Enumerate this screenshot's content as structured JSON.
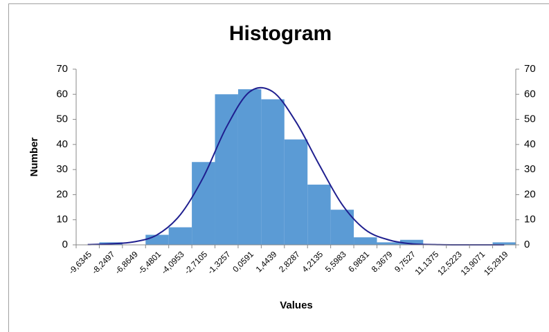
{
  "chart_data": {
    "type": "bar",
    "title": "Histogram",
    "x_label": "Values",
    "y_label": "Number",
    "categories": [
      "-9,6345",
      "-8,2497",
      "-6,8649",
      "-5,4801",
      "-4,0953",
      "-2,7105",
      "-1,3257",
      "0,0591",
      "1,4439",
      "2,8287",
      "4,2135",
      "5,5983",
      "6,9831",
      "8,3679",
      "9,7527",
      "11,1375",
      "12,5223",
      "13,9071",
      "15,2919"
    ],
    "series": [
      {
        "type": "bar",
        "color": "#5b9bd5",
        "values": [
          0,
          1,
          0,
          4,
          7,
          33,
          60,
          62,
          58,
          42,
          24,
          14,
          3,
          1,
          2,
          0,
          0,
          0,
          1
        ]
      },
      {
        "type": "line",
        "color": "#1f1f8f",
        "values": [
          0.1,
          0.4,
          1.2,
          4,
          12,
          27,
          47,
          61,
          61,
          49,
          32,
          16,
          6,
          2,
          0.4,
          0.1,
          0,
          0,
          0
        ]
      }
    ],
    "ylim": [
      0,
      70
    ],
    "yticks": [
      0,
      10,
      20,
      30,
      40,
      50,
      60,
      70
    ],
    "y2lim": [
      0,
      70
    ],
    "y2ticks": [
      0,
      10,
      20,
      30,
      40,
      50,
      60,
      70
    ]
  }
}
